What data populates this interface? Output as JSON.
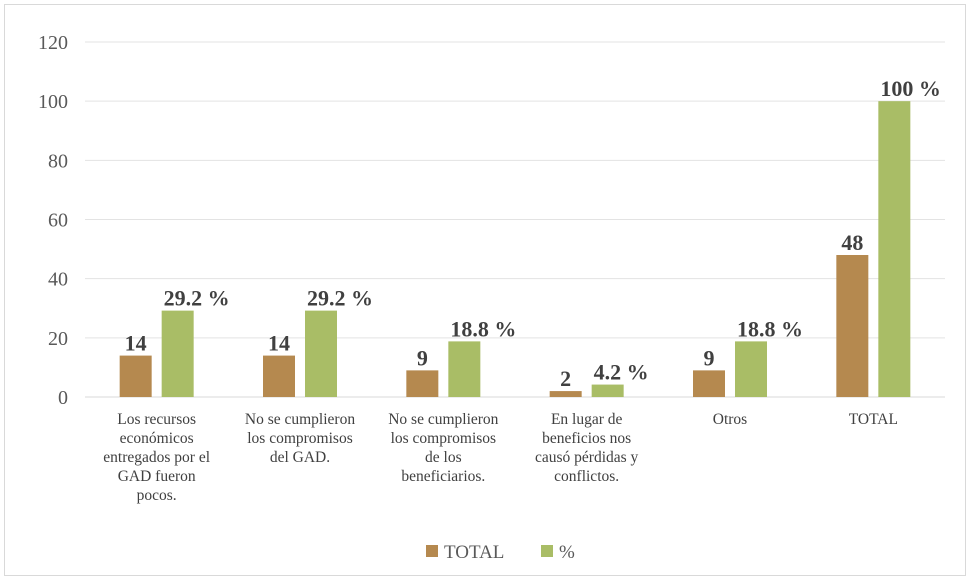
{
  "chart_data": {
    "type": "bar",
    "title": "",
    "xlabel": "",
    "ylabel": "",
    "ylim": [
      0,
      120
    ],
    "yticks": [
      0,
      20,
      40,
      60,
      80,
      100,
      120
    ],
    "grid": true,
    "legend_position": "bottom",
    "categories": [
      [
        "Los recursos",
        "económicos",
        "entregados por el",
        "GAD fueron",
        "pocos."
      ],
      [
        "No se cumplieron",
        "los compromisos",
        "del   GAD."
      ],
      [
        "No se cumplieron",
        "los compromisos",
        "de los",
        "beneficiarios."
      ],
      [
        "En lugar de",
        "beneficios nos",
        "causó pérdidas y",
        "conflictos."
      ],
      [
        "Otros"
      ],
      [
        "TOTAL"
      ]
    ],
    "series": [
      {
        "name": "TOTAL",
        "color": "#b5894f",
        "values": [
          14,
          14,
          9,
          2,
          9,
          48
        ],
        "labels": [
          "14",
          "14",
          "9",
          "2",
          "9",
          "48"
        ]
      },
      {
        "name": "%",
        "color": "#a9bd66",
        "values": [
          29.2,
          29.2,
          18.8,
          4.2,
          18.8,
          100
        ],
        "labels": [
          "29.2 %",
          "29.2 %",
          "18.8 %",
          "4.2 %",
          "18.8 %",
          "100 %"
        ]
      }
    ]
  }
}
